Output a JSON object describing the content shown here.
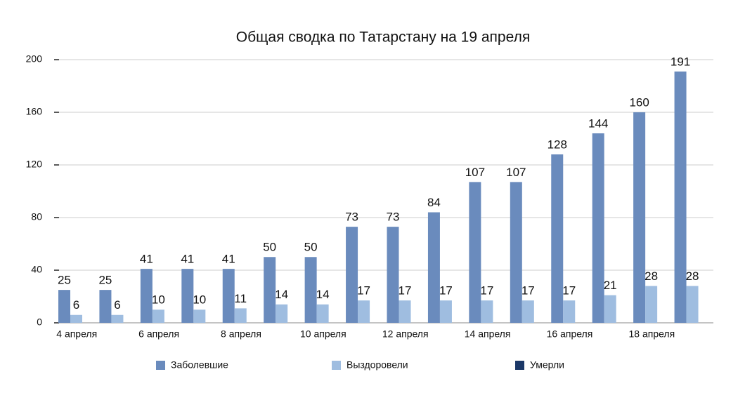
{
  "chart_data": {
    "type": "bar",
    "title": "Общая сводка по Татарстану на 19 апреля",
    "categories": [
      "4 апреля",
      null,
      "6 апреля",
      null,
      "8 апреля",
      null,
      "10 апреля",
      null,
      "12 апреля",
      null,
      "14 апреля",
      null,
      "16 апреля",
      null,
      "18 апреля",
      null
    ],
    "series": [
      {
        "name": "Заболевшие",
        "color": "#6a8bbd",
        "values": [
          25,
          25,
          41,
          41,
          41,
          50,
          50,
          73,
          73,
          84,
          107,
          107,
          128,
          144,
          160,
          191
        ]
      },
      {
        "name": "Выздоровели",
        "color": "#9fbde0",
        "values": [
          6,
          6,
          10,
          10,
          11,
          14,
          14,
          17,
          17,
          17,
          17,
          17,
          17,
          21,
          28,
          28
        ]
      },
      {
        "name": "Умерли",
        "color": "#1c3868",
        "values": [
          null,
          null,
          null,
          null,
          null,
          null,
          null,
          null,
          null,
          null,
          null,
          null,
          null,
          null,
          null,
          null
        ]
      }
    ],
    "ylim": [
      0,
      200
    ],
    "yticks": [
      0,
      40,
      80,
      120,
      160,
      200
    ],
    "grid": true,
    "legend": "bottom"
  }
}
